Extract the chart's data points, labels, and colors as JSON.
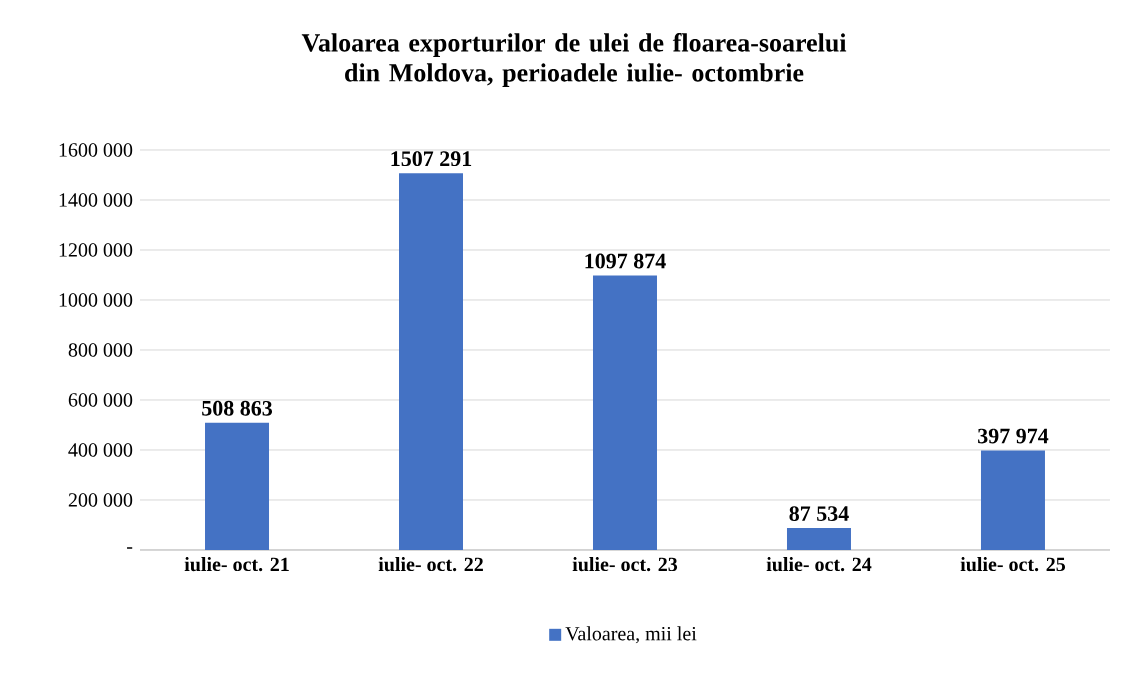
{
  "chart_data": {
    "type": "bar",
    "title": "Valoarea exporturilor de ulei de floarea-soarelui  din Moldova, perioadele iulie- octombrie",
    "categories": [
      "iulie- oct. 21",
      "iulie- oct. 22",
      "iulie- oct. 23",
      "iulie- oct. 24",
      "iulie- oct. 25"
    ],
    "series": [
      {
        "name": "Valoarea, mii lei",
        "color": "#4472c4",
        "values": [
          508863,
          1507291,
          1097874,
          87534,
          397974
        ],
        "value_labels": [
          "508 863",
          "1507 291",
          "1097 874",
          "87 534",
          "397 974"
        ]
      }
    ],
    "ylim": [
      0,
      1600000
    ],
    "yticks": [
      {
        "value": 0,
        "label": "-"
      },
      {
        "value": 200000,
        "label": "200 000"
      },
      {
        "value": 400000,
        "label": "400 000"
      },
      {
        "value": 600000,
        "label": "600 000"
      },
      {
        "value": 800000,
        "label": "800 000"
      },
      {
        "value": 1000000,
        "label": "1000 000"
      },
      {
        "value": 1200000,
        "label": "1200 000"
      },
      {
        "value": 1400000,
        "label": "1400 000"
      },
      {
        "value": 1600000,
        "label": "1600 000"
      }
    ],
    "grid": "y",
    "legend": "bottom"
  }
}
